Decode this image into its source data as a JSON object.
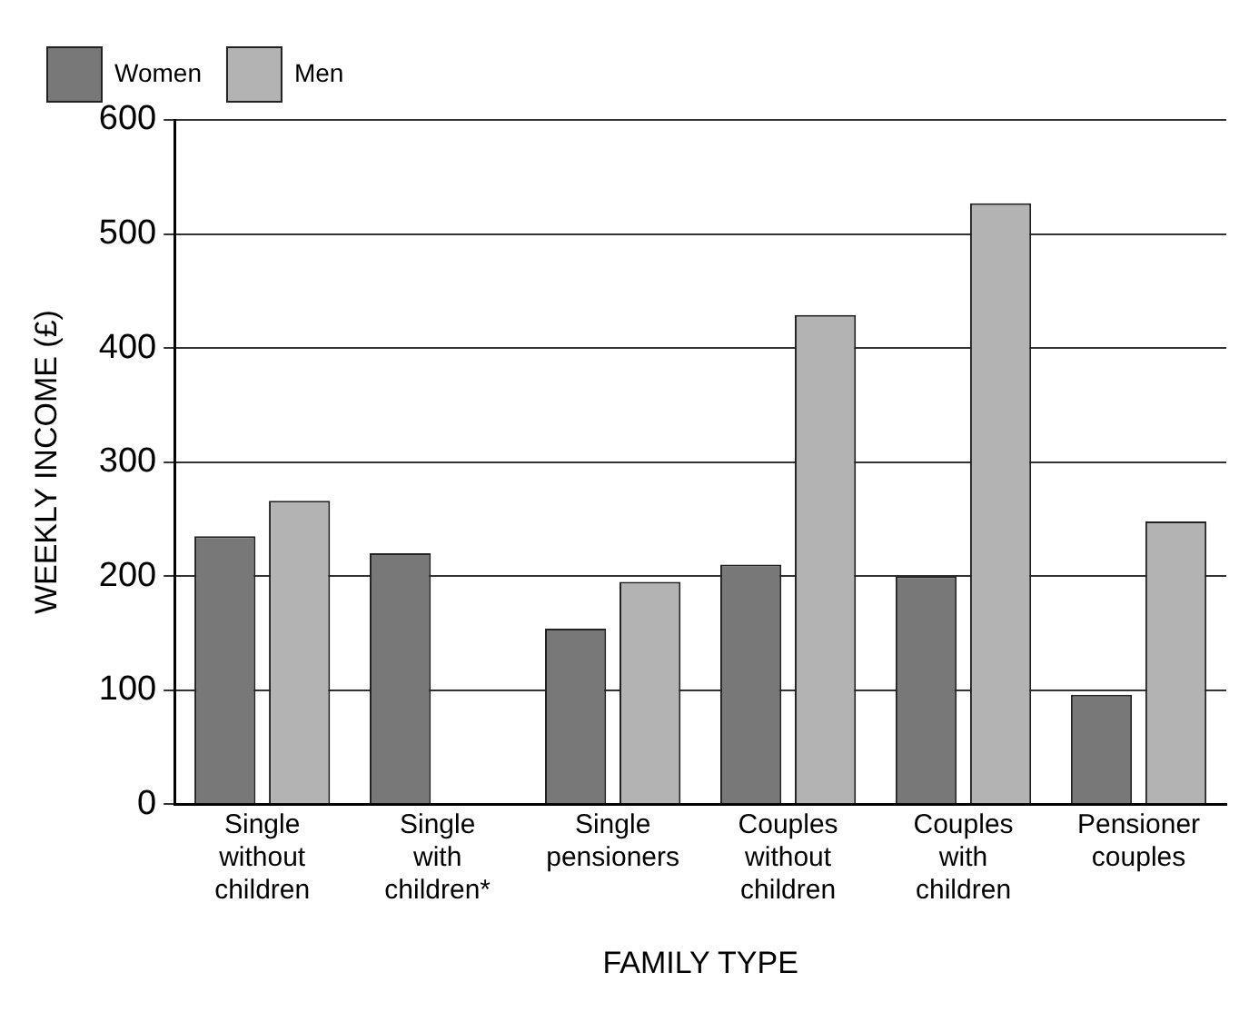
{
  "chart_data": {
    "type": "bar",
    "xlabel": "FAMILY TYPE",
    "ylabel": "WEEKLY INCOME (£)",
    "categories": [
      "Single\nwithout\nchildren",
      "Single\nwith\nchildren*",
      "Single\npensioners",
      "Couples\nwithout\nchildren",
      "Couples\nwith\nchildren",
      "Pensioner\ncouples"
    ],
    "series": [
      {
        "name": "Women",
        "color": "#787878",
        "values": [
          235,
          220,
          154,
          210,
          200,
          96
        ]
      },
      {
        "name": "Men",
        "color": "#b3b3b3",
        "values": [
          266,
          null,
          195,
          429,
          527,
          248
        ]
      }
    ],
    "ylim": [
      0,
      600
    ],
    "yticks": [
      0,
      100,
      200,
      300,
      400,
      500,
      600
    ],
    "grid": "y",
    "legend": "top left"
  }
}
